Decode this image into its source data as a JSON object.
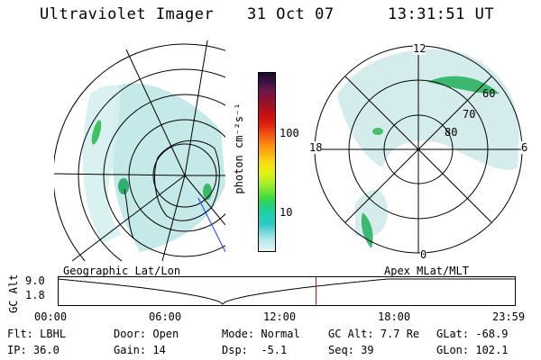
{
  "header": {
    "title": "Ultraviolet Imager",
    "date": "31 Oct 07",
    "time": "13:31:51 UT"
  },
  "colorbar": {
    "unit": "photon cm⁻²s⁻¹",
    "ticks": [
      "100",
      "10"
    ],
    "colors": [
      "#1a0a2a",
      "#3a1040",
      "#6a1a4a",
      "#8e1030",
      "#b01020",
      "#d01010",
      "#e02a10",
      "#f05a10",
      "#f88a10",
      "#fcb010",
      "#f8d810",
      "#e8f010",
      "#c0f020",
      "#80e830",
      "#40d840",
      "#20d080",
      "#20d0b0",
      "#30c8c8",
      "#80dcdc",
      "#c0ecec",
      "#e4f4f4"
    ]
  },
  "polar_plot": {
    "hour_labels": {
      "top": "12",
      "left": "18",
      "right": "6",
      "bottom": "0"
    },
    "lat_labels": [
      "60",
      "70",
      "80"
    ]
  },
  "timeline": {
    "y_axis_label": "GC Alt",
    "y_ticks": [
      "9.0",
      "1.8"
    ],
    "left_caption": "Geographic Lat/Lon",
    "right_caption": "Apex MLat/MLT",
    "x_ticks": [
      "00:00",
      "06:00",
      "12:00",
      "18:00",
      "23:59"
    ],
    "current_time_fraction": 0.564
  },
  "info": {
    "row1": [
      {
        "key": "Flt:",
        "value": "LBHL"
      },
      {
        "key": "Door:",
        "value": "Open"
      },
      {
        "key": "Mode:",
        "value": "Normal"
      },
      {
        "key": "GC Alt:",
        "value": "7.7 Re"
      },
      {
        "key": "GLat:",
        "value": "-68.9"
      }
    ],
    "row2": [
      {
        "key": "IP:",
        "value": "36.0"
      },
      {
        "key": "Gain:",
        "value": "14"
      },
      {
        "key": "Dsp:",
        "value": "-5.1"
      },
      {
        "key": "Seq:",
        "value": "39"
      },
      {
        "key": "GLon:",
        "value": "102.1"
      }
    ]
  }
}
